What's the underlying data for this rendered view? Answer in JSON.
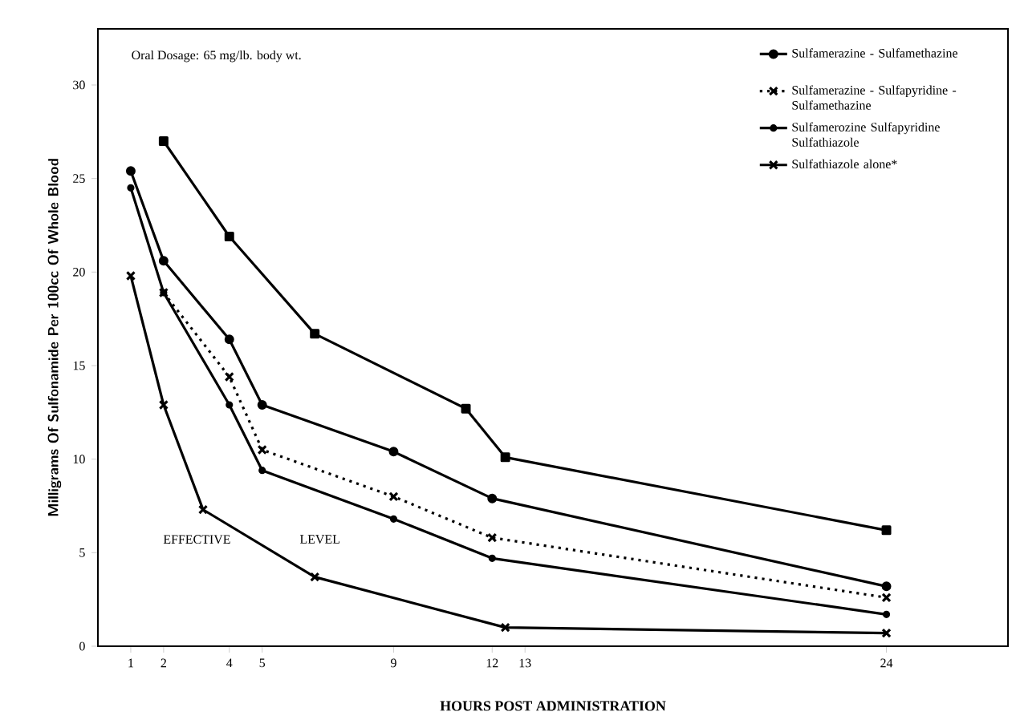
{
  "chart_data": {
    "type": "line",
    "xlabel": "HOURS POST ADMINISTRATION",
    "ylabel": "Milligrams Of Sulfonamide Per 100cc Of Whole Blood",
    "xlim": [
      0,
      27.7
    ],
    "ylim": [
      0,
      33
    ],
    "xticks": [
      1,
      2,
      4,
      5,
      9,
      12,
      13,
      24
    ],
    "yticks": [
      0,
      5,
      10,
      15,
      20,
      25,
      30
    ],
    "legend": "top right",
    "grid": false,
    "annotations": [
      "Oral Dosage: 65 mg/lb. body wt.",
      "EFFECTIVE",
      "LEVEL"
    ],
    "series": [
      {
        "color": "#000000",
        "marker": "square",
        "line_style": "solid",
        "x": [
          2,
          4,
          6.6,
          11.2,
          12.4,
          24
        ],
        "values": [
          27.0,
          21.9,
          16.7,
          12.7,
          10.1,
          6.2
        ]
      },
      {
        "name": "Sulfamerazine - Sulfamethazine",
        "color": "#000000",
        "marker": "circle",
        "line_style": "solid",
        "x": [
          1,
          2,
          4,
          5,
          9,
          12,
          24
        ],
        "values": [
          25.4,
          20.6,
          16.4,
          12.9,
          10.4,
          7.9,
          3.2
        ]
      },
      {
        "name": "Sulfamerazine - Sulfapyridine - Sulfamethazine",
        "color": "#000000",
        "marker": "cross",
        "line_style": "dotted",
        "x": [
          2,
          4,
          5,
          9,
          12,
          24
        ],
        "values": [
          18.9,
          14.4,
          10.5,
          8.0,
          5.8,
          2.6
        ]
      },
      {
        "name": "Sulfamerozine Sulfapyridine Sulfathiazole",
        "color": "#000000",
        "marker": "circle",
        "line_style": "solid",
        "x": [
          1,
          2,
          4,
          5,
          9,
          12,
          24
        ],
        "values": [
          24.5,
          18.9,
          12.9,
          9.4,
          6.8,
          4.7,
          1.7
        ]
      },
      {
        "name": "Sulfathiazole alone*",
        "color": "#000000",
        "marker": "cross",
        "line_style": "solid",
        "x": [
          1,
          2,
          3.2,
          6.6,
          12.4,
          24
        ],
        "values": [
          19.8,
          12.9,
          7.3,
          3.7,
          1.0,
          0.7
        ]
      }
    ]
  }
}
